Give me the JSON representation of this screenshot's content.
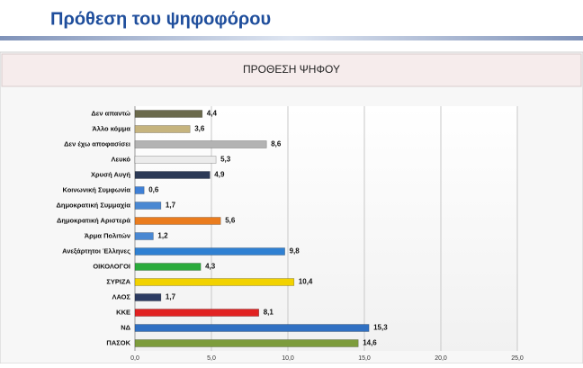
{
  "header": {
    "title": "Πρόθεση του ψηφοφόρου"
  },
  "chart_data": {
    "type": "hbar",
    "title": "ΠΡΟΘΕΣΗ ΨΗΦΟΥ",
    "categories": [
      "Δεν απαντώ",
      "Άλλο κόμμα",
      "Δεν έχω αποφασίσει",
      "Λευκό",
      "Χρυσή Αυγή",
      "Κοινωνική Συμφωνία",
      "Δημοκρατική Συμμαχία",
      "Δημοκρατική Αριστερά",
      "Άρμα Πολιτών",
      "Ανεξάρτητοι Έλληνες",
      "ΟΙΚΟΛΟΓΟΙ",
      "ΣΥΡΙΖΑ",
      "ΛΑΟΣ",
      "ΚΚΕ",
      "ΝΔ",
      "ΠΑΣΟΚ"
    ],
    "values": [
      4.4,
      3.6,
      8.6,
      5.3,
      4.9,
      0.6,
      1.7,
      5.6,
      1.2,
      9.8,
      4.3,
      10.4,
      1.7,
      8.1,
      15.3,
      14.6
    ],
    "value_labels": [
      "4,4",
      "3,6",
      "8,6",
      "5,3",
      "4,9",
      "0,6",
      "1,7",
      "5,6",
      "1,2",
      "9,8",
      "4,3",
      "10,4",
      "1,7",
      "8,1",
      "15,3",
      "14,6"
    ],
    "colors": [
      "#6b6a4c",
      "#c6b47e",
      "#b3b3b3",
      "#ececec",
      "#2c3a56",
      "#3f80d6",
      "#4a88d2",
      "#ea7c1e",
      "#4a88d2",
      "#2f80d2",
      "#2bab3c",
      "#f2d200",
      "#2c3b62",
      "#e12222",
      "#3070c2",
      "#7d9c3c"
    ],
    "xlim": [
      0,
      25
    ],
    "xticks": [
      {
        "value": 0,
        "label": "0,0"
      },
      {
        "value": 5,
        "label": "5,0"
      },
      {
        "value": 10,
        "label": "10,0"
      },
      {
        "value": 15,
        "label": "15,0"
      },
      {
        "value": 20,
        "label": "20,0"
      },
      {
        "value": 25,
        "label": "25,0"
      }
    ],
    "grid": true
  }
}
